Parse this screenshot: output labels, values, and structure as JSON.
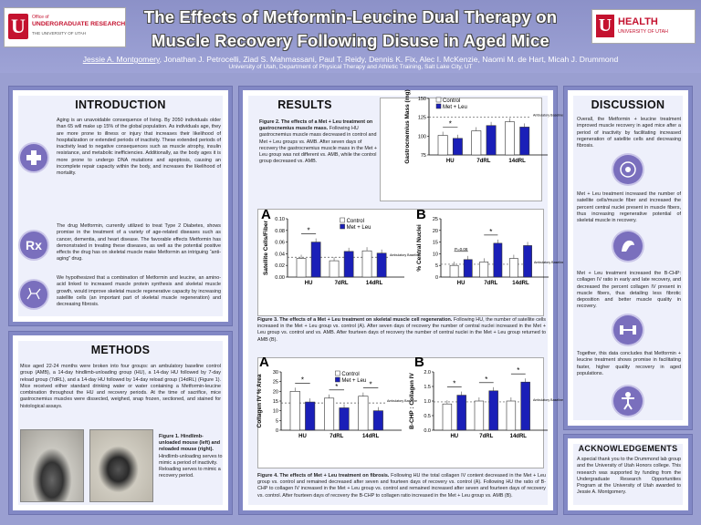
{
  "header": {
    "title1": "The Effects of Metformin-Leucine Dual Therapy on",
    "title2": "Muscle Recovery Following Disuse in Aged Mice",
    "authors_lead": "Jessie A. Montgomery",
    "authors_rest": ", Jonathan J. Petrocelli, Ziad S. Mahmassani, Paul T. Reidy, Dennis K. Fix, Alec I. McKenzie, Naomi M. de Hart, Micah J. Drummond",
    "affiliation": "University of Utah, Department of Physical Therapy and Athletic Training, Salt Lake City, UT",
    "logo_left_line1": "Office of",
    "logo_left_line2": "UNDERGRADUATE RESEARCH",
    "logo_left_line3": "THE UNIVERSITY OF UTAH",
    "logo_right_line1": "HEALTH",
    "logo_right_line2": "UNIVERSITY OF UTAH"
  },
  "intro": {
    "heading": "INTRODUCTION",
    "p1": "Aging is an unavoidable consequence of living. By 2050 individuals older than 65 will make up 15% of the global population. As individuals age, they are more prone to illness or injury that increases their likelihood of hospitalization or extended periods of inactivity. These extended periods of inactivity lead to negative consequences such as muscle atrophy, insulin resistance, and metabolic inefficiencies. Additionally, as the body ages it is more prone to undergo DNA mutations and apoptosis, causing an incomplete repair capacity within the body, and increases the likelihood of mortality.",
    "p2": "The drug Metformin, currently utilized to treat Type 2 Diabetes, shows promise in the treatment of a variety of age-related diseases such as cancer, dementia, and heart disease. The favorable effects Metformin has demonstrated in treating these diseases, as well as the potential positive effects the drug has on skeletal muscle make Metformin an intriguing “anti-aging” drug.",
    "p3": "We hypothesized that a combination of Metformin and leucine, an amino-acid linked to increased muscle protein synthesis and skeletal muscle growth, would improve skeletal muscle regenerative capacity by increasing satellite cells (an important part of skeletal muscle regeneration) and decreasing fibrosis.",
    "rx": "Rx"
  },
  "methods": {
    "heading": "METHODS",
    "p1": "Mice aged 22-24 months were broken into four groups: an ambulatory baseline control group (AMB), a 14-day hindlimb-unloading group (HU), a 14-day HU followed by 7-day reload group (7dRL), and a 14-day HU followed by 14-day reload group (14dRL) (Figure 1). Mice received either standard drinking water or water containing a Metformin-leucine combination throughout the HU and recovery periods. At the time of sacrifice, mice gastrocnemius muscles were dissected, weighed, snap frozen, sectioned, and stained for histological assays.",
    "fig_bold": "Figure 1. Hindlimb-unloaded mouse (left) and reloaded mouse (right).",
    "fig_rest": " Hindlimb-unloading serves to mimic a period of inactivity. Reloading serves to mimic a recovery period."
  },
  "results": {
    "heading": "RESULTS",
    "fig2_bold": "Figure 2. The effects of a Met + Leu treatment on gastrocnemius muscle mass.",
    "fig2_rest": " Following HU gastrocnemius muscle mass decreased in control and Met + Leu groups vs. AMB. After seven days of recovery the gastrocnemius muscle mass in the Met + Leu group was not different vs. AMB, while the control group decreased vs. AMB.",
    "fig3_bold": "Figure 3. The effects of a Met + Leu treatment on skeletal muscle cell regeneration.",
    "fig3_rest": " Following HU, the number of satellite cells increased in the Met + Leu group vs. control (A). After seven days of recovery the number of central nuclei increased in the Met + Leu group vs. control and vs. AMB. After fourteen days of recovery the number of central nuclei in the Met + Leu group returned to AMB (B).",
    "fig4_bold": "Figure 4. The effects of Met + Leu treatment on fibrosis.",
    "fig4_rest": " Following HU the total collagen IV content decreased in the Met + Leu group vs. control and remained decreased after seven and fourteen days of recovery vs. control (A). Following HU the ratio of B-CHP to collagen IV increased in the Met + Leu group vs. control and remained increased after seven and fourteen days of recovery vs. control. After fourteen days of recovery the B-CHP to collagen ratio increased in the Met + Leu group vs. AMB (B)."
  },
  "discussion": {
    "heading": "DISCUSSION",
    "p1": "Overall, the Metformin + leucine treatment improved muscle recovery in aged mice after a period of inactivity by facilitating increased regeneration of satellite cells and decreasing fibrosis.",
    "p2": "Met + Leu treatment increased the number of satellite cells/muscle fiber and increased the percent central nuclei present in muscle fibers, thus increasing regenerative potential of skeletal muscle in recovery.",
    "p3": "Met + Leu treatment increased the B-CHP: collagen IV ratio in early and late recovery, and decreased the percent collagen IV present in muscle fibers, thus detailing less fibrotic deposition and better muscle quality in recovery.",
    "p4": "Together, this data concludes that Metformin + leucine treatment shows promise in facilitating faster, higher quality recovery in aged populations."
  },
  "ack": {
    "heading": "ACKNOWLEDGEMENTS",
    "p1": "A special thank you to the Drummond lab group and the University of Utah Honors college. This research was supported by funding from the Undergraduate Research Opportunities Program at the University of Utah awarded to Jessie A. Montgomery."
  },
  "colors": {
    "control": "#ffffff",
    "metleu": "#1a1fb8",
    "frame": "#8288c5",
    "header": "#959ad0"
  },
  "chart_data": [
    {
      "id": "fig2",
      "type": "bar",
      "categories": [
        "HU",
        "7dRL",
        "14dRL"
      ],
      "series": [
        {
          "name": "Control",
          "values": [
            101,
            107,
            119
          ]
        },
        {
          "name": "Met + Leu",
          "values": [
            97,
            114,
            112
          ]
        }
      ],
      "ylabel": "Gastrocnemius Mass (mg)",
      "yticks": [
        75,
        100,
        125,
        150
      ],
      "ylim": [
        75,
        150
      ],
      "baseline": 125,
      "baseline_label": "Ambulatory Baseline",
      "sig": [
        "*",
        "",
        ""
      ]
    },
    {
      "id": "fig3a",
      "type": "bar",
      "panel": "A",
      "categories": [
        "HU",
        "7dRL",
        "14dRL"
      ],
      "series": [
        {
          "name": "Control",
          "values": [
            0.032,
            0.028,
            0.045
          ]
        },
        {
          "name": "Met + Leu",
          "values": [
            0.06,
            0.044,
            0.041
          ]
        }
      ],
      "ylabel": "Satellite Cells/Fiber",
      "yticks": [
        "0.00",
        "0.02",
        "0.04",
        "0.06",
        "0.08",
        "0.10"
      ],
      "ylim": [
        0,
        0.1
      ],
      "baseline": 0.034,
      "baseline_label": "Ambulatory Baseline",
      "sig": [
        "*",
        "",
        ""
      ]
    },
    {
      "id": "fig3b",
      "type": "bar",
      "panel": "B",
      "categories": [
        "HU",
        "7dRL",
        "14dRL"
      ],
      "series": [
        {
          "name": "Control",
          "values": [
            5,
            6.5,
            8
          ]
        },
        {
          "name": "Met + Leu",
          "values": [
            7.5,
            14.5,
            13.5
          ]
        }
      ],
      "ylabel": "% Central Nuclei",
      "yticks": [
        0,
        5,
        10,
        15,
        20,
        25
      ],
      "ylim": [
        0,
        25
      ],
      "baseline": 5.5,
      "baseline_label": "Ambulatory Baseline",
      "sig": [
        "P=0.08",
        "*",
        ""
      ]
    },
    {
      "id": "fig4a",
      "type": "bar",
      "panel": "A",
      "categories": [
        "HU",
        "7dRL",
        "14dRL"
      ],
      "series": [
        {
          "name": "Control",
          "values": [
            20,
            16.5,
            17.5
          ]
        },
        {
          "name": "Met + Leu",
          "values": [
            14.5,
            11.5,
            10
          ]
        }
      ],
      "ylabel": "Collagen IV % Area",
      "yticks": [
        0,
        5,
        10,
        15,
        20,
        25,
        30
      ],
      "ylim": [
        0,
        30
      ],
      "baseline": 14,
      "baseline_label": "Ambulatory Baseline",
      "sig": [
        "*",
        "*",
        "*"
      ]
    },
    {
      "id": "fig4b",
      "type": "bar",
      "panel": "B",
      "categories": [
        "HU",
        "7dRL",
        "14dRL"
      ],
      "series": [
        {
          "name": "Control",
          "values": [
            0.9,
            1.0,
            1.0
          ]
        },
        {
          "name": "Met + Leu",
          "values": [
            1.2,
            1.35,
            1.65
          ]
        }
      ],
      "ylabel": "B-CHP : Collagen IV",
      "yticks": [
        "0.0",
        "0.5",
        "1.0",
        "1.5",
        "2.0"
      ],
      "ylim": [
        0,
        2
      ],
      "baseline": 0.97,
      "baseline_label": "Ambulatory Baseline",
      "sig": [
        "*",
        "*",
        "*"
      ]
    }
  ]
}
